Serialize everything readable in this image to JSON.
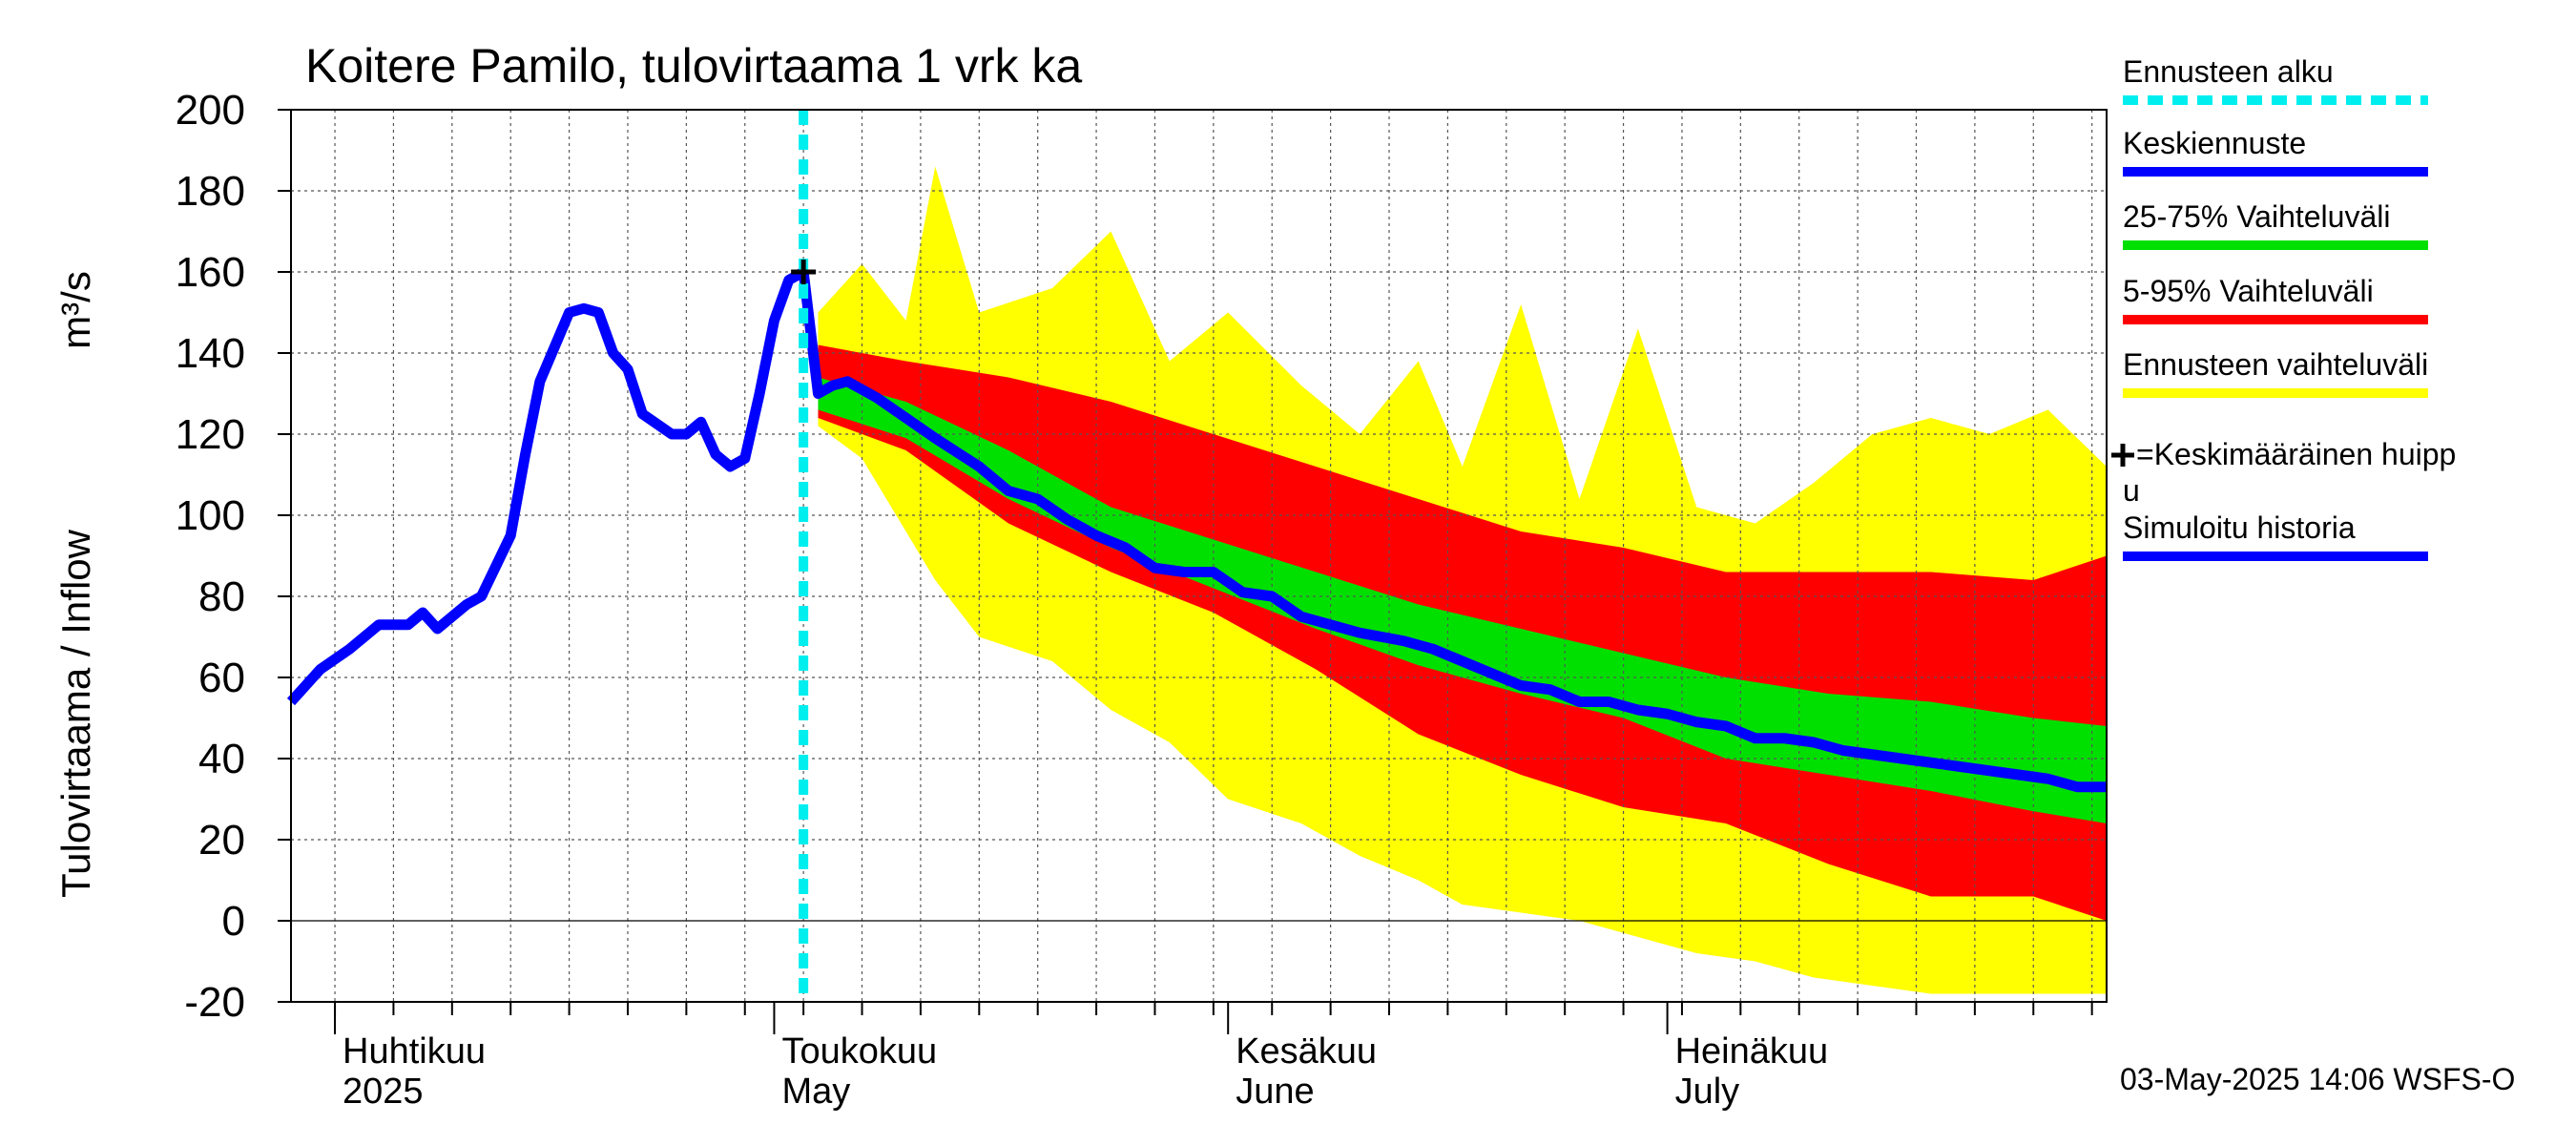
{
  "chart_data": {
    "type": "area",
    "title": "Koitere Pamilo, tulovirtaama 1 vrk ka",
    "ylabel": "Tulovirtaama / Inflow",
    "yunit": "m³/s",
    "ylim": [
      -20,
      200
    ],
    "yticks": [
      -20,
      0,
      20,
      40,
      60,
      80,
      100,
      120,
      140,
      160,
      180,
      200
    ],
    "xlim": [
      "2025-03-29",
      "2025-07-31"
    ],
    "grid": true,
    "legend_position": "right",
    "month_labels": [
      {
        "date": "2025-04-01",
        "fi": "Huhtikuu",
        "en": "2025"
      },
      {
        "date": "2025-05-01",
        "fi": "Toukokuu",
        "en": "May"
      },
      {
        "date": "2025-06-01",
        "fi": "Kesäkuu",
        "en": "June"
      },
      {
        "date": "2025-07-01",
        "fi": "Heinäkuu",
        "en": "July"
      }
    ],
    "forecast_start": "2025-05-03",
    "mean_peak": {
      "date": "2025-05-03",
      "value": 160
    },
    "series": [
      {
        "name": "Simuloitu historia",
        "color": "#0000ff",
        "x": [
          "2025-03-29",
          "2025-03-31",
          "2025-04-02",
          "2025-04-04",
          "2025-04-06",
          "2025-04-07",
          "2025-04-08",
          "2025-04-09",
          "2025-04-10",
          "2025-04-11",
          "2025-04-13",
          "2025-04-14",
          "2025-04-15",
          "2025-04-17",
          "2025-04-18",
          "2025-04-19",
          "2025-04-20",
          "2025-04-21",
          "2025-04-22",
          "2025-04-24",
          "2025-04-25",
          "2025-04-26",
          "2025-04-27",
          "2025-04-28",
          "2025-04-29",
          "2025-04-30",
          "2025-05-01",
          "2025-05-02",
          "2025-05-03"
        ],
        "y": [
          54,
          62,
          67,
          73,
          73,
          76,
          72,
          75,
          78,
          80,
          95,
          115,
          133,
          150,
          151,
          150,
          140,
          136,
          125,
          120,
          120,
          123,
          115,
          112,
          114,
          130,
          148,
          158,
          160
        ]
      },
      {
        "name": "Keskiennuste",
        "color": "#0000ff",
        "x": [
          "2025-05-03",
          "2025-05-04",
          "2025-05-05",
          "2025-05-06",
          "2025-05-07",
          "2025-05-08",
          "2025-05-10",
          "2025-05-12",
          "2025-05-15",
          "2025-05-17",
          "2025-05-19",
          "2025-05-21",
          "2025-05-23",
          "2025-05-25",
          "2025-05-27",
          "2025-05-29",
          "2025-05-31",
          "2025-06-02",
          "2025-06-04",
          "2025-06-06",
          "2025-06-08",
          "2025-06-10",
          "2025-06-13",
          "2025-06-15",
          "2025-06-17",
          "2025-06-19",
          "2025-06-21",
          "2025-06-23",
          "2025-06-25",
          "2025-06-27",
          "2025-06-29",
          "2025-07-01",
          "2025-07-03",
          "2025-07-05",
          "2025-07-07",
          "2025-07-09",
          "2025-07-11",
          "2025-07-13",
          "2025-07-15",
          "2025-07-17",
          "2025-07-19",
          "2025-07-21",
          "2025-07-23",
          "2025-07-25",
          "2025-07-27",
          "2025-07-29",
          "2025-07-31"
        ],
        "y": [
          160,
          130,
          132,
          133,
          131,
          129,
          124,
          119,
          112,
          106,
          104,
          99,
          95,
          92,
          87,
          86,
          86,
          81,
          80,
          75,
          73,
          71,
          69,
          67,
          64,
          61,
          58,
          57,
          54,
          54,
          52,
          51,
          49,
          48,
          45,
          45,
          44,
          42,
          41,
          40,
          39,
          38,
          37,
          36,
          35,
          33,
          33
        ]
      },
      {
        "name": "25-75% Vaihteluväli",
        "color": "#00e000",
        "x": [
          "2025-05-04",
          "2025-05-10",
          "2025-05-17",
          "2025-05-24",
          "2025-05-31",
          "2025-06-07",
          "2025-06-14",
          "2025-06-21",
          "2025-06-28",
          "2025-07-05",
          "2025-07-12",
          "2025-07-19",
          "2025-07-26",
          "2025-07-31"
        ],
        "upper": [
          134,
          128,
          116,
          102,
          94,
          86,
          78,
          72,
          66,
          60,
          56,
          54,
          50,
          48
        ],
        "lower": [
          126,
          119,
          104,
          92,
          82,
          72,
          63,
          56,
          50,
          40,
          36,
          32,
          27,
          24
        ]
      },
      {
        "name": "5-95% Vaihteluväli",
        "color": "#ff0000",
        "x": [
          "2025-05-04",
          "2025-05-10",
          "2025-05-17",
          "2025-05-24",
          "2025-05-31",
          "2025-06-07",
          "2025-06-14",
          "2025-06-21",
          "2025-06-28",
          "2025-07-05",
          "2025-07-12",
          "2025-07-19",
          "2025-07-26",
          "2025-07-31"
        ],
        "upper": [
          142,
          138,
          134,
          128,
          120,
          112,
          104,
          96,
          92,
          86,
          86,
          86,
          84,
          90
        ],
        "lower": [
          124,
          116,
          98,
          86,
          76,
          62,
          46,
          36,
          28,
          24,
          14,
          6,
          6,
          0
        ]
      },
      {
        "name": "Ennusteen vaihteluväli",
        "color": "#ffff00",
        "x": [
          "2025-05-04",
          "2025-05-07",
          "2025-05-10",
          "2025-05-12",
          "2025-05-15",
          "2025-05-20",
          "2025-05-24",
          "2025-05-28",
          "2025-06-01",
          "2025-06-06",
          "2025-06-10",
          "2025-06-14",
          "2025-06-17",
          "2025-06-21",
          "2025-06-25",
          "2025-06-29",
          "2025-07-03",
          "2025-07-07",
          "2025-07-11",
          "2025-07-15",
          "2025-07-19",
          "2025-07-23",
          "2025-07-27",
          "2025-07-31"
        ],
        "upper": [
          150,
          162,
          148,
          186,
          150,
          156,
          170,
          138,
          150,
          132,
          120,
          138,
          112,
          152,
          104,
          146,
          102,
          98,
          108,
          120,
          124,
          120,
          126,
          112
        ],
        "lower": [
          122,
          114,
          96,
          84,
          70,
          64,
          52,
          44,
          30,
          24,
          16,
          10,
          4,
          2,
          0,
          -4,
          -8,
          -10,
          -14,
          -16,
          -18,
          -18,
          -18,
          -18
        ]
      }
    ]
  },
  "legend": {
    "items": [
      {
        "label": "Ennusteen alku",
        "color": "#00eeee",
        "style": "dashed"
      },
      {
        "label": "Keskiennuste",
        "color": "#0000ff",
        "style": "solid"
      },
      {
        "label": "25-75% Vaihteluväli",
        "color": "#00e000",
        "style": "solid"
      },
      {
        "label": "5-95% Vaihteluväli",
        "color": "#ff0000",
        "style": "solid"
      },
      {
        "label": "Ennusteen vaihteluväli",
        "color": "#ffff00",
        "style": "solid"
      },
      {
        "label": "=Keskimääräinen huipp",
        "label2": "u",
        "color": "#000000",
        "style": "marker"
      },
      {
        "label": "Simuloitu historia",
        "color": "#0000ff",
        "style": "solid"
      }
    ]
  },
  "footer": {
    "timestamp": "03-May-2025 14:06 WSFS-O"
  }
}
